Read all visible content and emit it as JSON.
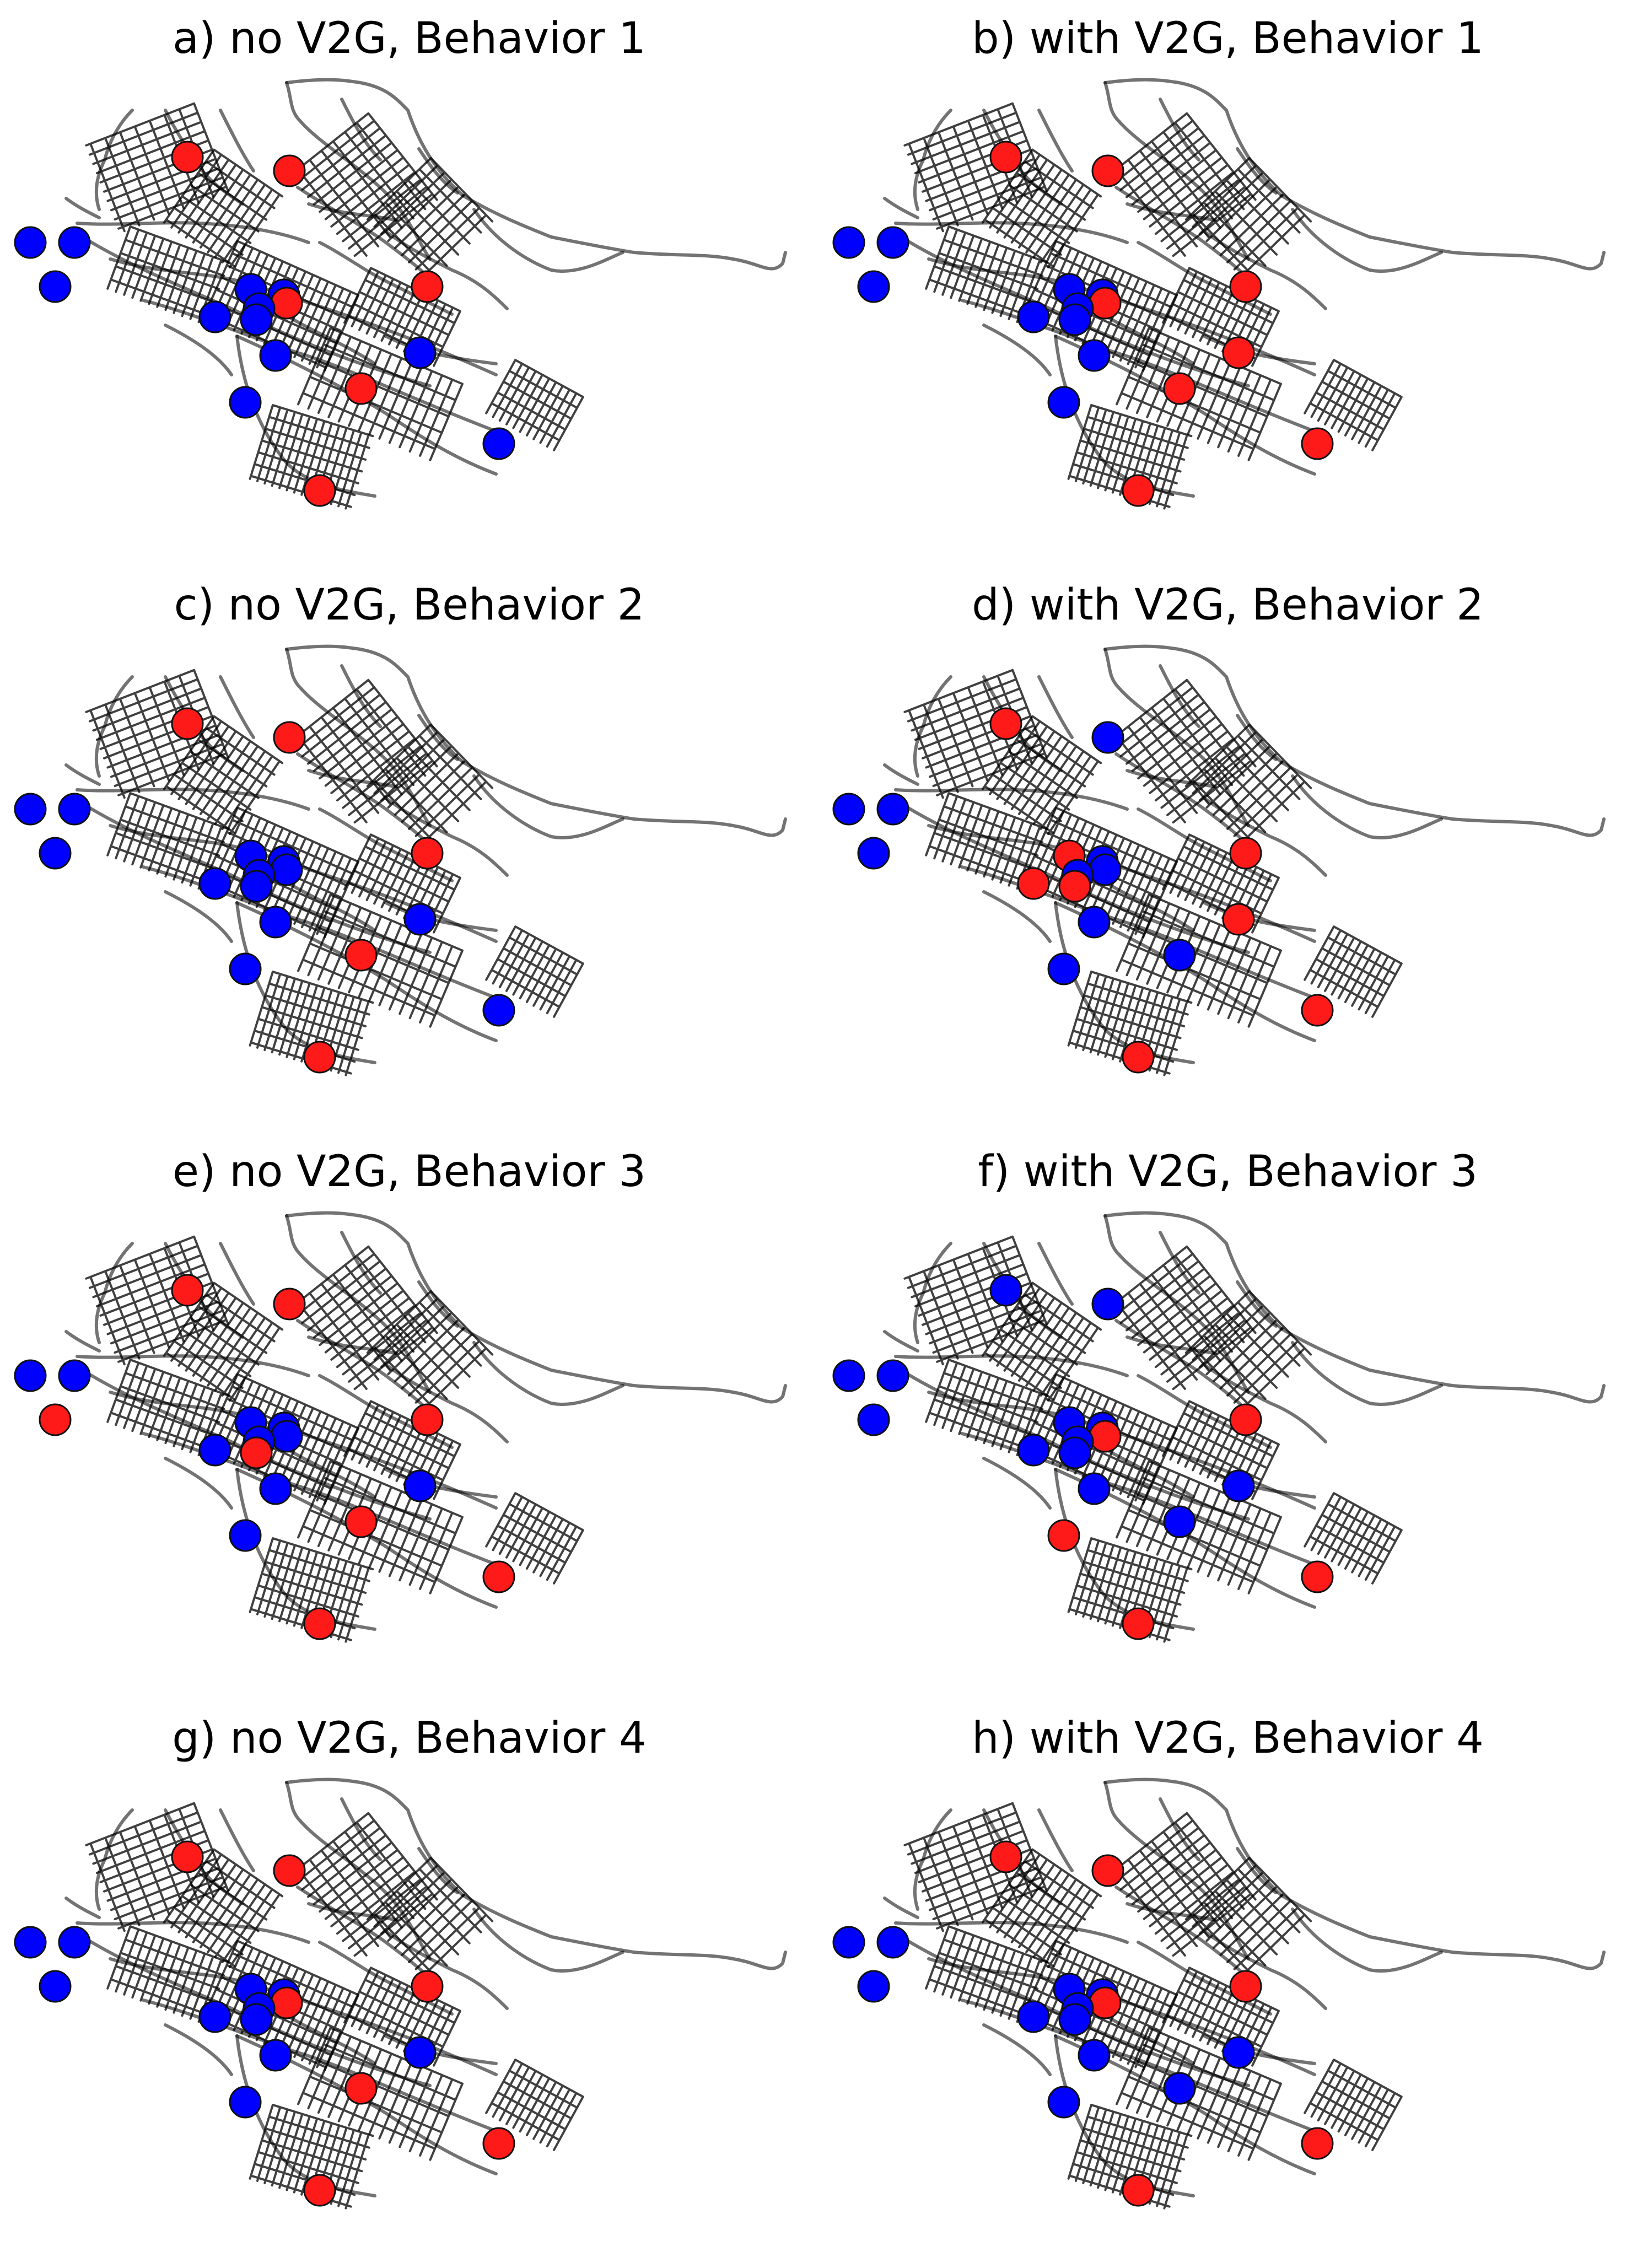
{
  "colors": {
    "charging": "#ff1a1a",
    "discharging": "#0000ff",
    "road": "#000000"
  },
  "panels": [
    {
      "id": "a",
      "title": "a) no V2G, Behavior 1",
      "stations": [
        "blue",
        "blue",
        "blue",
        "red",
        "red",
        "red",
        "blue",
        "blue",
        "red",
        "blue",
        "blue",
        "blue",
        "blue",
        "blue",
        "red",
        "blue",
        "blue",
        "red"
      ]
    },
    {
      "id": "b",
      "title": "b) with V2G, Behavior 1",
      "stations": [
        "blue",
        "blue",
        "blue",
        "red",
        "red",
        "red",
        "blue",
        "blue",
        "red",
        "blue",
        "blue",
        "blue",
        "blue",
        "red",
        "red",
        "blue",
        "red",
        "red"
      ]
    },
    {
      "id": "c",
      "title": "c) no V2G, Behavior 2",
      "stations": [
        "blue",
        "blue",
        "blue",
        "red",
        "red",
        "red",
        "blue",
        "blue",
        "blue",
        "blue",
        "blue",
        "blue",
        "blue",
        "blue",
        "red",
        "blue",
        "blue",
        "red"
      ]
    },
    {
      "id": "d",
      "title": "d) with V2G, Behavior 2",
      "stations": [
        "blue",
        "blue",
        "blue",
        "red",
        "blue",
        "red",
        "red",
        "blue",
        "blue",
        "red",
        "blue",
        "red",
        "blue",
        "red",
        "blue",
        "blue",
        "red",
        "red"
      ]
    },
    {
      "id": "e",
      "title": "e) no V2G, Behavior 3",
      "stations": [
        "blue",
        "blue",
        "red",
        "red",
        "red",
        "red",
        "blue",
        "blue",
        "blue",
        "blue",
        "blue",
        "red",
        "blue",
        "blue",
        "red",
        "blue",
        "red",
        "red"
      ]
    },
    {
      "id": "f",
      "title": "f) with V2G, Behavior 3",
      "stations": [
        "blue",
        "blue",
        "blue",
        "blue",
        "blue",
        "red",
        "blue",
        "blue",
        "red",
        "blue",
        "blue",
        "blue",
        "blue",
        "blue",
        "blue",
        "red",
        "red",
        "red"
      ]
    },
    {
      "id": "g",
      "title": "g) no V2G, Behavior 4",
      "stations": [
        "blue",
        "blue",
        "blue",
        "red",
        "red",
        "red",
        "blue",
        "blue",
        "red",
        "blue",
        "blue",
        "blue",
        "blue",
        "blue",
        "red",
        "blue",
        "red",
        "red"
      ]
    },
    {
      "id": "h",
      "title": "h) with V2G, Behavior 4",
      "stations": [
        "blue",
        "blue",
        "blue",
        "red",
        "red",
        "red",
        "blue",
        "blue",
        "red",
        "blue",
        "blue",
        "blue",
        "blue",
        "blue",
        "blue",
        "blue",
        "red",
        "red"
      ]
    }
  ]
}
